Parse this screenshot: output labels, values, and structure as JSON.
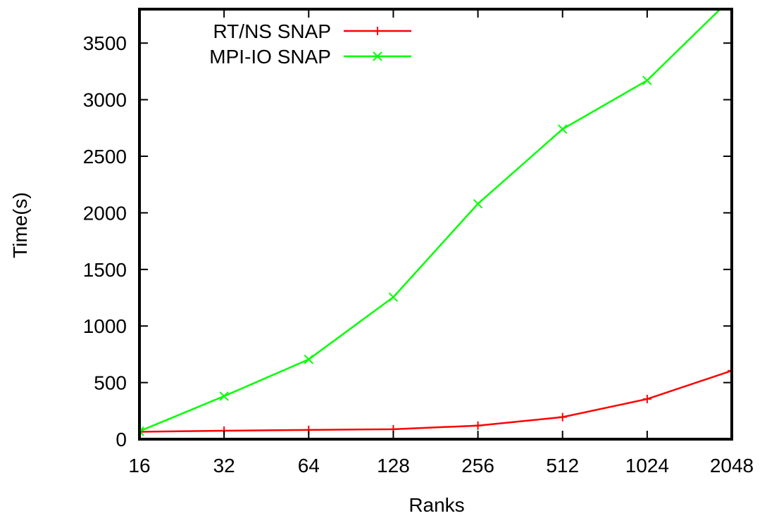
{
  "chart_data": {
    "type": "line",
    "title": "",
    "xlabel": "Ranks",
    "ylabel": "Time(s)",
    "x_scale": "log2",
    "x": [
      16,
      32,
      64,
      128,
      256,
      512,
      1024,
      2048
    ],
    "xticks": [
      "16",
      "32",
      "64",
      "128",
      "256",
      "512",
      "1024",
      "2048"
    ],
    "yticks": [
      "0",
      "500",
      "1000",
      "1500",
      "2000",
      "2500",
      "3000",
      "3500"
    ],
    "ylim": [
      0,
      3800
    ],
    "grid": false,
    "legend_position": "top-left",
    "series": [
      {
        "name": "RT/NS SNAP",
        "color": "#ff0000",
        "marker": "plus",
        "values": [
          65,
          75,
          82,
          88,
          120,
          195,
          355,
          605
        ]
      },
      {
        "name": "MPI-IO SNAP",
        "color": "#00ff00",
        "marker": "cross",
        "values": [
          70,
          380,
          705,
          1255,
          2080,
          2740,
          3170,
          3900
        ]
      }
    ]
  }
}
